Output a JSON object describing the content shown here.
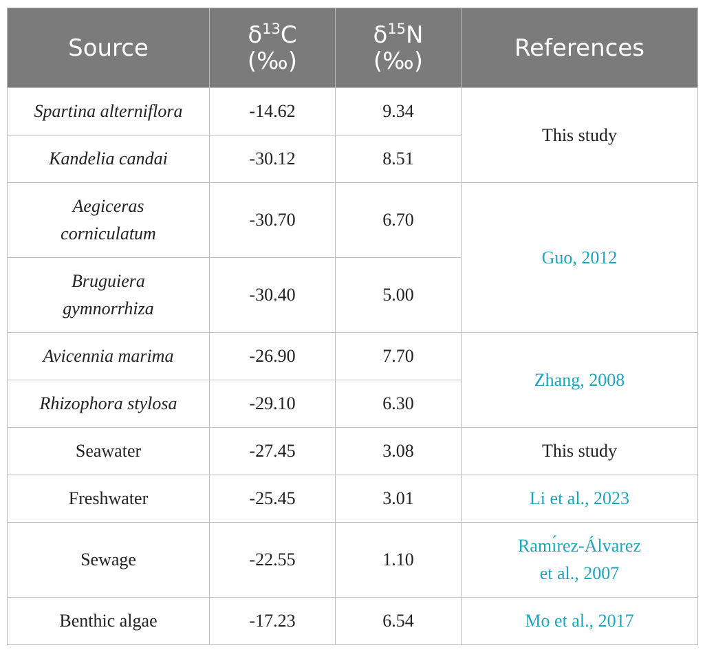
{
  "table": {
    "headers": {
      "source": "Source",
      "d13c": {
        "symbol": "δ",
        "mass": "13",
        "element": "C",
        "unit": "(‰)"
      },
      "d15n": {
        "symbol": "δ",
        "mass": "15",
        "element": "N",
        "unit": "(‰)"
      },
      "references": "References"
    },
    "rows": [
      {
        "source": "Spartina alterniflora",
        "d13c": "-14.62",
        "d15n": "9.34"
      },
      {
        "source": "Kandelia candai",
        "d13c": "-30.12",
        "d15n": "8.51"
      },
      {
        "source_line1": "Aegiceras",
        "source_line2": "corniculatum",
        "d13c": "-30.70",
        "d15n": "6.70"
      },
      {
        "source_line1": "Bruguiera",
        "source_line2": "gymnorrhiza",
        "d13c": "-30.40",
        "d15n": "5.00"
      },
      {
        "source": "Avicennia marima",
        "d13c": "-26.90",
        "d15n": "7.70"
      },
      {
        "source": "Rhizophora stylosa",
        "d13c": "-29.10",
        "d15n": "6.30"
      },
      {
        "source": "Seawater",
        "d13c": "-27.45",
        "d15n": "3.08"
      },
      {
        "source": "Freshwater",
        "d13c": "-25.45",
        "d15n": "3.01"
      },
      {
        "source": "Sewage",
        "d13c": "-22.55",
        "d15n": "1.10"
      },
      {
        "source": "Benthic algae",
        "d13c": "-17.23",
        "d15n": "6.54"
      }
    ],
    "references": {
      "this_study_1": "This study",
      "guo_2012": "Guo, 2012",
      "zhang_2008": "Zhang, 2008",
      "this_study_2": "This study",
      "li_2023": "Li et al., 2023",
      "ramirez_line1": "Ramı́rez-Álvarez",
      "ramirez_line2": "et al., 2007",
      "mo_2017": "Mo et al., 2017"
    }
  },
  "colors": {
    "header_bg": "#7b7b7b",
    "header_text": "#ffffff",
    "link": "#1aa5bd",
    "border": "#bdbdbd"
  }
}
